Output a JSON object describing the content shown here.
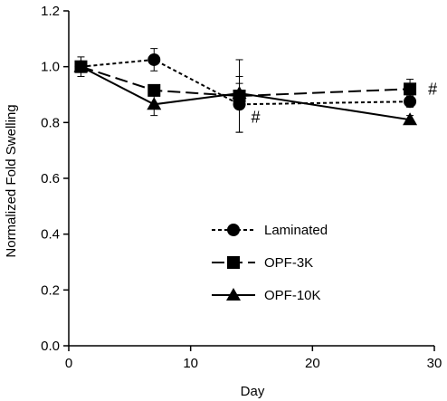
{
  "chart_data": {
    "type": "line",
    "title": "",
    "xlabel": "Day",
    "ylabel": "Normalized Fold Swelling",
    "xlim": [
      0,
      30
    ],
    "ylim": [
      0.0,
      1.2
    ],
    "xticks": [
      0,
      10,
      20,
      30
    ],
    "xtick_labels": [
      "0",
      "10",
      "20",
      "30"
    ],
    "yticks": [
      0.0,
      0.2,
      0.4,
      0.6,
      0.8,
      1.0,
      1.2
    ],
    "ytick_labels": [
      "0.0",
      "0.2",
      "0.4",
      "0.6",
      "0.8",
      "1.0",
      "1.2"
    ],
    "grid": false,
    "legend_position": "bottom-center",
    "series": [
      {
        "name": "Laminated",
        "marker": "circle",
        "line_style": "dotted",
        "x": [
          1,
          7,
          14,
          28
        ],
        "y": [
          1.0,
          1.025,
          0.865,
          0.875
        ],
        "err": [
          0.02,
          0.04,
          0.1,
          0.02
        ]
      },
      {
        "name": "OPF-3K",
        "marker": "square",
        "line_style": "long-dash",
        "x": [
          1,
          7,
          14,
          28
        ],
        "y": [
          1.0,
          0.915,
          0.895,
          0.92
        ],
        "err": [
          0.035,
          0.02,
          0.13,
          0.035
        ]
      },
      {
        "name": "OPF-10K",
        "marker": "triangle",
        "line_style": "solid",
        "x": [
          1,
          7,
          14,
          28
        ],
        "y": [
          1.0,
          0.865,
          0.905,
          0.81
        ],
        "err": [
          0.02,
          0.04,
          0.035,
          0.015
        ]
      }
    ],
    "annotations": [
      {
        "text": "#",
        "x": 14,
        "y": 0.865
      },
      {
        "text": "#",
        "x": 28,
        "y": 0.92
      }
    ]
  }
}
